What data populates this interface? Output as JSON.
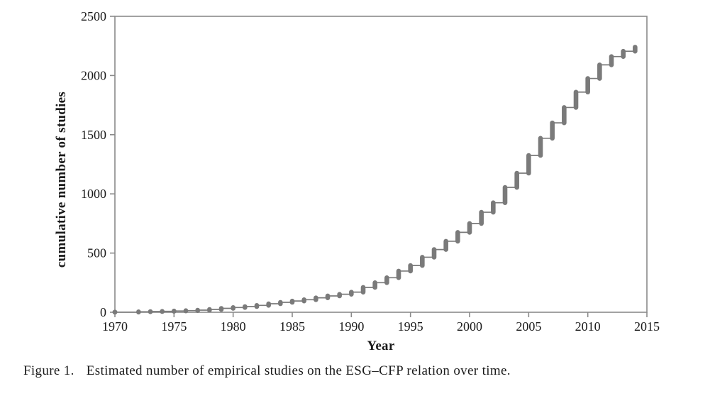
{
  "figure": {
    "caption_label": "Figure 1.",
    "caption_text": "Estimated number of empirical studies on the ESG–CFP relation over time."
  },
  "chart_data": {
    "type": "line",
    "subtype": "cumulative-step",
    "title": "",
    "xlabel": "Year",
    "ylabel": "cumulative number of studies",
    "xlim": [
      1970,
      2015
    ],
    "ylim": [
      0,
      2500
    ],
    "x_ticks": [
      1970,
      1975,
      1980,
      1985,
      1990,
      1995,
      2000,
      2005,
      2010,
      2015
    ],
    "y_ticks": [
      0,
      500,
      1000,
      1500,
      2000,
      2500
    ],
    "grid": false,
    "legend": "none",
    "frame": "full-box",
    "series_color": "#7a7a7a",
    "axis_color": "#8a8a8a",
    "series": [
      {
        "name": "cumulative number of studies",
        "x": [
          1970,
          1972,
          1973,
          1974,
          1975,
          1976,
          1977,
          1978,
          1979,
          1980,
          1981,
          1982,
          1983,
          1984,
          1985,
          1986,
          1987,
          1988,
          1989,
          1990,
          1991,
          1992,
          1993,
          1994,
          1995,
          1996,
          1997,
          1998,
          1999,
          2000,
          2001,
          2002,
          2003,
          2004,
          2005,
          2006,
          2007,
          2008,
          2009,
          2010,
          2011,
          2012,
          2013,
          2014
        ],
        "values": [
          1,
          4,
          6,
          8,
          11,
          14,
          18,
          24,
          33,
          40,
          48,
          58,
          72,
          84,
          95,
          106,
          122,
          138,
          152,
          170,
          210,
          250,
          292,
          348,
          395,
          465,
          530,
          600,
          675,
          750,
          845,
          925,
          1055,
          1175,
          1325,
          1470,
          1600,
          1730,
          1860,
          1975,
          2090,
          2160,
          2205,
          2240
        ]
      }
    ]
  }
}
